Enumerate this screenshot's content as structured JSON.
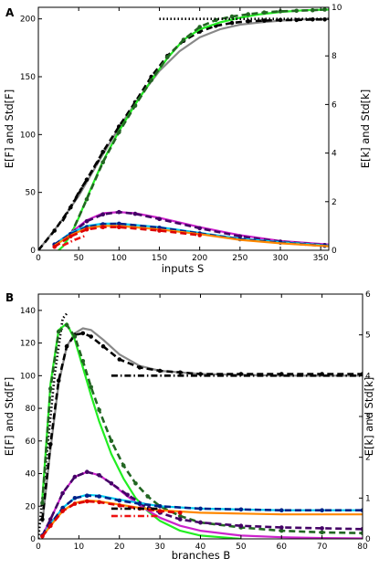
{
  "chart_data": [
    {
      "type": "line",
      "panel_label": "A",
      "xlabel": "inputs S",
      "ylabel_left": "E[F] and Std[F]",
      "ylabel_right": "E[k] and Std[k]",
      "xlim": [
        0,
        360
      ],
      "ylim_left": [
        0,
        210
      ],
      "ylim_right": [
        0,
        10
      ],
      "x_ticks": [
        0,
        50,
        100,
        150,
        200,
        250,
        300,
        350
      ],
      "y_ticks_left": [
        0,
        50,
        100,
        150,
        200
      ],
      "y_ticks_right": [
        0,
        2,
        4,
        6,
        8,
        10
      ],
      "grid": false,
      "series": [
        {
          "color": "#888888",
          "style": "solid",
          "x": [
            0,
            25,
            50,
            75,
            100,
            125,
            150,
            175,
            200,
            225,
            250,
            275,
            300,
            325,
            360
          ],
          "y": [
            0,
            22,
            47,
            77,
            106,
            132,
            155,
            172,
            184,
            191,
            195,
            197,
            198.5,
            199.5,
            200
          ]
        },
        {
          "color": "#000000",
          "style": "dashed",
          "markers": true,
          "x": [
            0,
            20,
            40,
            60,
            80,
            100,
            120,
            140,
            160,
            180,
            200,
            220,
            240,
            260,
            280,
            300,
            320,
            340,
            355
          ],
          "y": [
            0,
            17,
            37,
            61,
            85,
            107,
            128,
            150,
            168,
            181,
            189,
            194,
            196.5,
            198,
            198.5,
            199,
            199,
            199.5,
            199.5
          ]
        },
        {
          "color": "#22ee22",
          "style": "solid",
          "x": [
            25,
            30,
            40,
            50,
            60,
            80,
            100,
            120,
            140,
            160,
            180,
            200,
            225,
            250,
            275,
            300,
            330,
            360
          ],
          "y": [
            0,
            3,
            13,
            28,
            45,
            77,
            103,
            126,
            147,
            166,
            182,
            191,
            197,
            201,
            204,
            206,
            207.5,
            208
          ]
        },
        {
          "color": "#226622",
          "style": "dashed",
          "markers": true,
          "x": [
            40,
            60,
            80,
            100,
            120,
            140,
            160,
            180,
            200,
            220,
            240,
            260,
            280,
            300,
            320,
            340,
            355
          ],
          "y": [
            13,
            44,
            76,
            102,
            125,
            147,
            167,
            182,
            193,
            199,
            202,
            204,
            205.5,
            206.5,
            207,
            207.5,
            208
          ]
        },
        {
          "color": "#000000",
          "style": "dashdot",
          "x": [
            30,
            50,
            75
          ],
          "y": [
            25,
            50,
            78
          ]
        },
        {
          "color": "#000000",
          "style": "dotted",
          "x": [
            150,
            360
          ],
          "y": [
            200,
            200
          ]
        },
        {
          "color": "#cc22cc",
          "style": "solid",
          "x": [
            20,
            40,
            60,
            80,
            100,
            120,
            150,
            200,
            250,
            300,
            360
          ],
          "y": [
            5,
            15,
            26,
            32,
            33,
            32,
            28,
            20,
            13,
            8,
            5
          ]
        },
        {
          "color": "#440066",
          "style": "dashed",
          "markers": true,
          "x": [
            20,
            40,
            60,
            80,
            100,
            120,
            150,
            200,
            250,
            300,
            355
          ],
          "y": [
            5,
            14,
            25,
            31,
            33,
            31.5,
            27,
            19,
            12,
            7.5,
            4.5
          ]
        },
        {
          "color": "#00ccee",
          "style": "solid",
          "x": [
            20,
            40,
            60,
            80,
            100,
            150,
            200,
            250,
            300,
            360
          ],
          "y": [
            5,
            15,
            21,
            23,
            23,
            20,
            15,
            10,
            7,
            4
          ]
        },
        {
          "color": "#002288",
          "style": "dashed",
          "markers": true,
          "x": [
            20,
            40,
            60,
            80,
            100,
            150,
            200,
            250,
            300,
            355
          ],
          "y": [
            5,
            14,
            20,
            22.5,
            23,
            19.5,
            14.5,
            9.5,
            6.5,
            3.8
          ]
        },
        {
          "color": "#ff8800",
          "style": "solid",
          "x": [
            20,
            40,
            60,
            80,
            100,
            150,
            200,
            250,
            300,
            360
          ],
          "y": [
            4,
            13,
            19,
            21,
            21,
            18,
            14,
            9,
            6,
            3.5
          ]
        },
        {
          "color": "#dd0000",
          "style": "dashed",
          "markers": true,
          "x": [
            20,
            40,
            60,
            80,
            100,
            150,
            200
          ],
          "y": [
            3,
            12,
            18,
            20,
            20,
            17,
            13
          ]
        },
        {
          "color": "#ee1111",
          "style": "dashdot",
          "x": [
            30,
            45,
            60
          ],
          "y": [
            4,
            9,
            13
          ]
        }
      ]
    },
    {
      "type": "line",
      "panel_label": "B",
      "xlabel": "branches B",
      "ylabel_left": "E[F] and Std[F]",
      "ylabel_right": "E[k] and Std[k]",
      "xlim": [
        0,
        80
      ],
      "ylim_left": [
        0,
        150
      ],
      "ylim_right": [
        0,
        6
      ],
      "x_ticks": [
        0,
        10,
        20,
        30,
        40,
        50,
        60,
        70,
        80
      ],
      "y_ticks_left": [
        0,
        20,
        40,
        60,
        80,
        100,
        120,
        140
      ],
      "y_ticks_right": [
        0,
        1,
        2,
        3,
        4,
        5,
        6
      ],
      "grid": false,
      "series": [
        {
          "color": "#000000",
          "style": "dotted",
          "x": [
            0,
            2,
            4,
            6,
            7
          ],
          "y": [
            0,
            50,
            100,
            135,
            138
          ]
        },
        {
          "color": "#888888",
          "style": "solid",
          "x": [
            1,
            3,
            5,
            7,
            9,
            11,
            13,
            16,
            20,
            25,
            30,
            40,
            50,
            60,
            70,
            80
          ],
          "y": [
            10,
            55,
            95,
            118,
            126,
            129,
            128,
            122,
            113,
            106,
            103,
            101,
            100.5,
            100,
            100,
            100
          ]
        },
        {
          "color": "#000000",
          "style": "dashed",
          "markers": true,
          "x": [
            1,
            3,
            5,
            7,
            9,
            11,
            13,
            16,
            20,
            25,
            30,
            35,
            40,
            50,
            60,
            70,
            80
          ],
          "y": [
            12,
            58,
            97,
            118,
            125,
            126,
            124,
            118,
            110,
            105,
            103,
            102,
            101,
            101,
            101,
            101,
            101
          ]
        },
        {
          "color": "#000000",
          "style": "dashdot",
          "x": [
            18,
            80
          ],
          "y": [
            100,
            100
          ]
        },
        {
          "color": "#22ee22",
          "style": "solid",
          "x": [
            1,
            3,
            5,
            7,
            9,
            11,
            13,
            15,
            18,
            21,
            24,
            27,
            30,
            35,
            40,
            45,
            50
          ],
          "y": [
            25,
            95,
            128,
            132,
            122,
            105,
            88,
            72,
            52,
            37,
            25,
            17,
            11,
            5,
            2,
            1,
            0
          ]
        },
        {
          "color": "#226622",
          "style": "dashed",
          "markers": true,
          "x": [
            1,
            3,
            5,
            7,
            9,
            11,
            13,
            15,
            18,
            21,
            24,
            27,
            30,
            35,
            40,
            50,
            60,
            70,
            80
          ],
          "y": [
            22,
            92,
            127,
            131,
            124,
            109,
            93,
            79,
            60,
            45,
            34,
            26,
            20,
            14,
            10,
            7,
            5,
            4,
            3.5
          ]
        },
        {
          "color": "#cc22cc",
          "style": "solid",
          "x": [
            1,
            3,
            6,
            9,
            12,
            15,
            18,
            22,
            26,
            30,
            35,
            40,
            50,
            60,
            70,
            80
          ],
          "y": [
            2,
            12,
            28,
            38,
            41,
            39,
            34,
            26,
            19,
            13,
            8,
            5,
            2,
            1,
            0.5,
            0.3
          ]
        },
        {
          "color": "#440066",
          "style": "dashed",
          "markers": true,
          "x": [
            1,
            3,
            6,
            9,
            12,
            15,
            18,
            22,
            26,
            30,
            35,
            40,
            50,
            60,
            70,
            80
          ],
          "y": [
            2,
            12,
            28,
            38,
            41,
            39,
            34,
            27,
            21,
            16,
            12,
            10,
            8,
            7,
            6.5,
            6
          ]
        },
        {
          "color": "#00ccee",
          "style": "solid",
          "x": [
            1,
            3,
            6,
            9,
            12,
            15,
            20,
            25,
            30,
            40,
            50,
            60,
            70,
            80
          ],
          "y": [
            2,
            9,
            19,
            25,
            27,
            26.5,
            24,
            22,
            20,
            18.5,
            18,
            17.5,
            17.5,
            17.5
          ]
        },
        {
          "color": "#002288",
          "style": "dashed",
          "markers": true,
          "x": [
            1,
            3,
            6,
            9,
            12,
            15,
            20,
            25,
            30,
            40,
            50,
            60,
            70,
            80
          ],
          "y": [
            2,
            9,
            19,
            25,
            26.5,
            26,
            23.5,
            21.5,
            20,
            18.5,
            18,
            17.5,
            17.5,
            17.5
          ]
        },
        {
          "color": "#ff8800",
          "style": "solid",
          "x": [
            1,
            3,
            6,
            9,
            12,
            15,
            20,
            25,
            30,
            40,
            50,
            60,
            70,
            80
          ],
          "y": [
            1.5,
            8,
            17,
            22,
            23.5,
            23,
            21,
            19,
            17.5,
            16,
            15.5,
            15,
            15,
            15
          ]
        },
        {
          "color": "#dd0000",
          "style": "dashed",
          "markers": true,
          "x": [
            1,
            3,
            6,
            9,
            12,
            15,
            20,
            25,
            30,
            35
          ],
          "y": [
            1.5,
            8,
            17,
            21.5,
            23,
            22.5,
            20.5,
            18.5,
            17,
            16
          ]
        },
        {
          "color": "#ee1111",
          "style": "dashdot",
          "x": [
            18,
            30
          ],
          "y": [
            14,
            14
          ]
        },
        {
          "color": "#000000",
          "style": "dashdot",
          "x": [
            18,
            30
          ],
          "y": [
            18.5,
            18.5
          ]
        }
      ]
    }
  ]
}
